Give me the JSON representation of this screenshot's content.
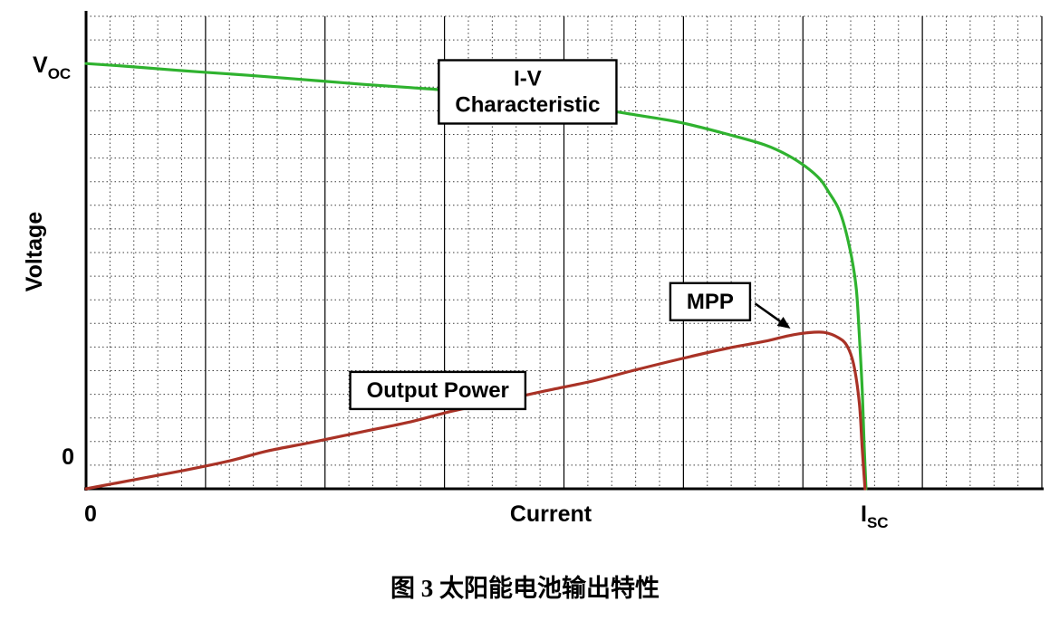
{
  "caption": {
    "text": "图 3 太阳能电池输出特性"
  },
  "chart_data": {
    "type": "line",
    "title": "",
    "x_axis": {
      "label": "Current",
      "zero_label": "0",
      "end_label_main": "I",
      "end_label_sub": "SC"
    },
    "y_axis": {
      "label": "Voltage",
      "zero_label": "0",
      "top_label_main": "V",
      "top_label_sub": "OC"
    },
    "grid": {
      "minor_cols": 40,
      "major_cols": 8,
      "minor_rows": 20
    },
    "key_points": {
      "voc_frac": 0.9,
      "isc_frac": 0.816,
      "mpp_frac": [
        0.737,
        0.339
      ]
    },
    "series": [
      {
        "name": "iv-characteristic",
        "label": "I-V Characteristic",
        "color": "#2fb22f",
        "points": [
          [
            0.0,
            0.9
          ],
          [
            0.05,
            0.893
          ],
          [
            0.1,
            0.885
          ],
          [
            0.15,
            0.878
          ],
          [
            0.19,
            0.872
          ],
          [
            0.24,
            0.864
          ],
          [
            0.29,
            0.856
          ],
          [
            0.34,
            0.849
          ],
          [
            0.38,
            0.843
          ],
          [
            0.43,
            0.831
          ],
          [
            0.48,
            0.82
          ],
          [
            0.53,
            0.806
          ],
          [
            0.57,
            0.793
          ],
          [
            0.62,
            0.776
          ],
          [
            0.67,
            0.751
          ],
          [
            0.71,
            0.728
          ],
          [
            0.735,
            0.705
          ],
          [
            0.754,
            0.68
          ],
          [
            0.768,
            0.655
          ],
          [
            0.777,
            0.628
          ],
          [
            0.787,
            0.594
          ],
          [
            0.794,
            0.552
          ],
          [
            0.801,
            0.489
          ],
          [
            0.806,
            0.421
          ],
          [
            0.809,
            0.326
          ],
          [
            0.812,
            0.211
          ],
          [
            0.814,
            0.096
          ],
          [
            0.816,
            0.0
          ]
        ]
      },
      {
        "name": "output-power",
        "label": "Output Power",
        "color": "#a93226",
        "points": [
          [
            0.0,
            0.0
          ],
          [
            0.05,
            0.019
          ],
          [
            0.1,
            0.038
          ],
          [
            0.15,
            0.059
          ],
          [
            0.19,
            0.08
          ],
          [
            0.24,
            0.1
          ],
          [
            0.29,
            0.121
          ],
          [
            0.34,
            0.142
          ],
          [
            0.38,
            0.163
          ],
          [
            0.43,
            0.185
          ],
          [
            0.48,
            0.207
          ],
          [
            0.53,
            0.228
          ],
          [
            0.57,
            0.249
          ],
          [
            0.62,
            0.274
          ],
          [
            0.67,
            0.297
          ],
          [
            0.71,
            0.312
          ],
          [
            0.735,
            0.324
          ],
          [
            0.754,
            0.33
          ],
          [
            0.772,
            0.331
          ],
          [
            0.787,
            0.32
          ],
          [
            0.796,
            0.303
          ],
          [
            0.803,
            0.264
          ],
          [
            0.809,
            0.182
          ],
          [
            0.812,
            0.086
          ],
          [
            0.815,
            0.0
          ]
        ]
      }
    ],
    "annotations": [
      {
        "name": "iv-characteristic-label",
        "lines": [
          "I-V",
          "Characteristic"
        ],
        "x": 0.462,
        "y": 0.841
      },
      {
        "name": "mpp-label",
        "lines": [
          "MPP"
        ],
        "x": 0.653,
        "y": 0.397,
        "arrow": {
          "from_x": 0.7,
          "from_y": 0.392,
          "to_x": 0.737,
          "to_y": 0.339
        }
      },
      {
        "name": "output-power-label",
        "lines": [
          "Output Power"
        ],
        "x": 0.368,
        "y": 0.209
      }
    ],
    "legend": "none"
  }
}
